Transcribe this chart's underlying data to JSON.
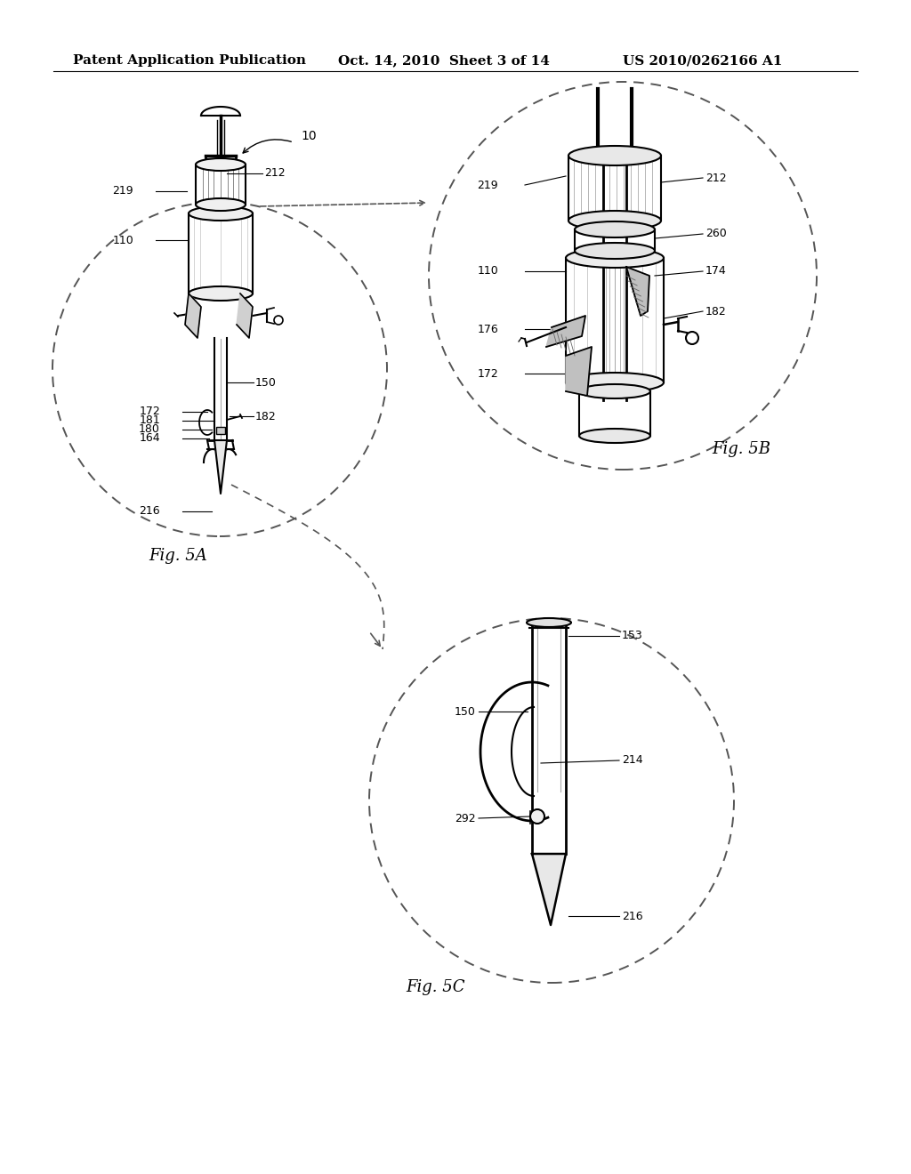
{
  "background_color": "#ffffff",
  "header_left": "Patent Application Publication",
  "header_center": "Oct. 14, 2010  Sheet 3 of 14",
  "header_right": "US 2010/0262166 A1",
  "header_fontsize": 11,
  "fig_5a_label": "Fig. 5A",
  "fig_5b_label": "Fig. 5B",
  "fig_5c_label": "Fig. 5C",
  "line_color": "#000000",
  "dashed_color": "#555555"
}
